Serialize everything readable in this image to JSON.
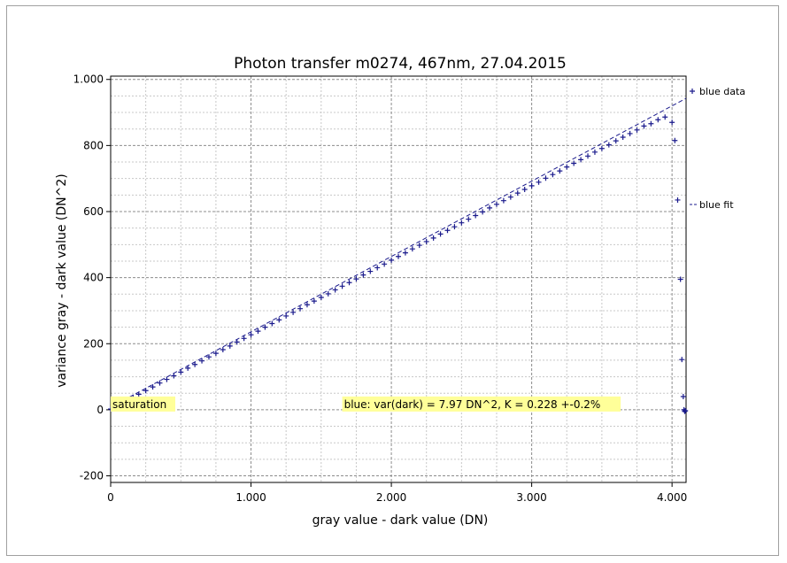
{
  "chart_data": {
    "type": "scatter",
    "title": "Photon transfer m0274, 467nm, 27.04.2015",
    "xlabel": "gray value - dark value (DN)",
    "ylabel": "variance gray - dark value (DN^2)",
    "xlim": [
      0,
      4100
    ],
    "ylim": [
      -220,
      1010
    ],
    "x_ticks": [
      0,
      1000,
      2000,
      3000,
      4000
    ],
    "x_tick_labels": [
      "0",
      "1.000",
      "2.000",
      "3.000",
      "4.000"
    ],
    "y_ticks": [
      -200,
      0,
      200,
      400,
      600,
      800,
      1000
    ],
    "y_tick_labels": [
      "-200",
      "0",
      "200",
      "400",
      "600",
      "800",
      "1.000"
    ],
    "grid": true,
    "legend_position": "right",
    "series": [
      {
        "name": "blue data",
        "marker": "+",
        "color": "#1a1a8c",
        "x": [
          0,
          40,
          80,
          120,
          160,
          200,
          250,
          300,
          350,
          400,
          450,
          500,
          550,
          600,
          650,
          700,
          750,
          800,
          850,
          900,
          950,
          1000,
          1050,
          1100,
          1150,
          1200,
          1250,
          1300,
          1350,
          1400,
          1450,
          1500,
          1550,
          1600,
          1650,
          1700,
          1750,
          1800,
          1850,
          1900,
          1950,
          2000,
          2050,
          2100,
          2150,
          2200,
          2250,
          2300,
          2350,
          2400,
          2450,
          2500,
          2550,
          2600,
          2650,
          2700,
          2750,
          2800,
          2850,
          2900,
          2950,
          3000,
          3050,
          3100,
          3150,
          3200,
          3250,
          3300,
          3350,
          3400,
          3450,
          3500,
          3550,
          3600,
          3650,
          3700,
          3750,
          3800,
          3850,
          3900,
          3950,
          4000,
          4020,
          4040,
          4060,
          4070,
          4080,
          4085,
          4090,
          4095
        ],
        "y": [
          2,
          11,
          20,
          29,
          38,
          47,
          58,
          69,
          81,
          92,
          103,
          114,
          126,
          137,
          148,
          160,
          171,
          182,
          193,
          205,
          216,
          227,
          238,
          250,
          261,
          272,
          284,
          295,
          306,
          318,
          329,
          340,
          351,
          363,
          374,
          385,
          396,
          408,
          419,
          430,
          441,
          453,
          464,
          475,
          487,
          498,
          509,
          520,
          532,
          543,
          554,
          566,
          577,
          588,
          599,
          611,
          622,
          633,
          644,
          656,
          667,
          678,
          689,
          701,
          712,
          723,
          735,
          746,
          757,
          768,
          780,
          791,
          802,
          814,
          825,
          836,
          847,
          859,
          866,
          878,
          886,
          870,
          815,
          635,
          395,
          152,
          40,
          0,
          -5,
          -3
        ]
      },
      {
        "name": "blue fit",
        "style": "dash",
        "color": "#1a1a8c",
        "x": [
          0,
          4100
        ],
        "y": [
          7.97,
          942.8
        ]
      }
    ],
    "annotations": [
      {
        "text": "saturation",
        "x": 0,
        "y": 0
      },
      {
        "text": "blue: var(dark) = 7.97 DN^2, K = 0.228 +-0.2%",
        "x": 1650,
        "y": 0
      }
    ],
    "annotation_color": "#ffff99"
  }
}
